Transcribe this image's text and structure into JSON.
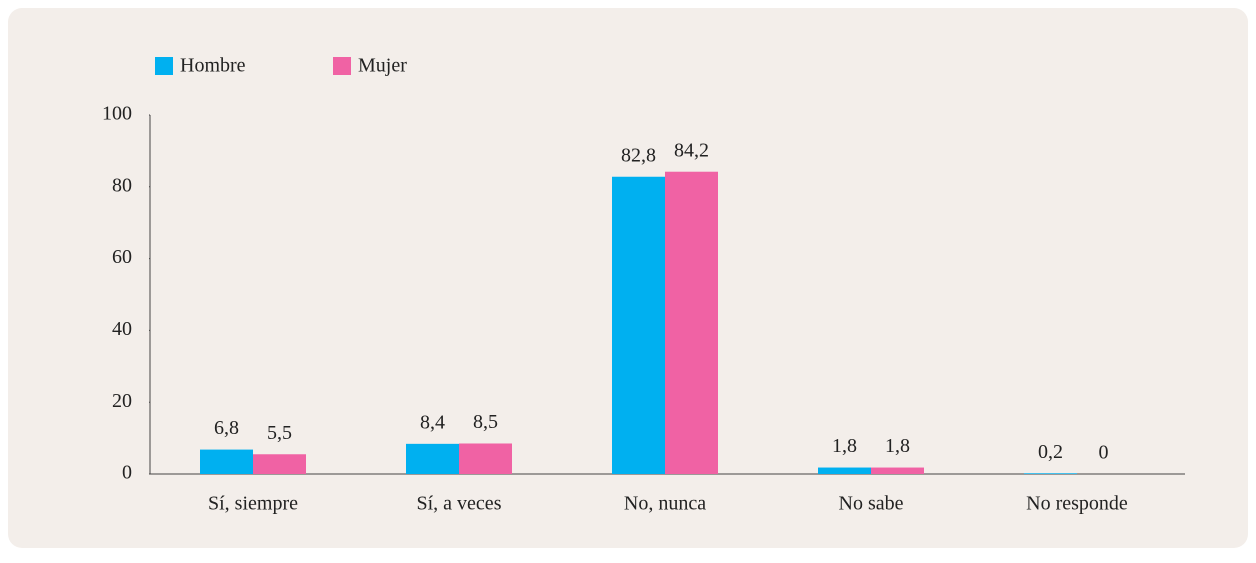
{
  "chart_data": {
    "type": "bar",
    "categories": [
      "Sí, siempre",
      "Sí, a veces",
      "No, nunca",
      "No sabe",
      "No responde"
    ],
    "series": [
      {
        "name": "Hombre",
        "color": "#00b0f0",
        "values": [
          6.8,
          8.4,
          82.8,
          1.8,
          0.2
        ],
        "value_labels": [
          "6,8",
          "8,4",
          "82,8",
          "1,8",
          "0,2"
        ]
      },
      {
        "name": "Mujer",
        "color": "#f062a4",
        "values": [
          5.5,
          8.5,
          84.2,
          1.8,
          0
        ],
        "value_labels": [
          "5,5",
          "8,5",
          "84,2",
          "1,8",
          "0"
        ]
      }
    ],
    "ylim": [
      0,
      100
    ],
    "yticks": [
      0,
      20,
      40,
      60,
      80,
      100
    ],
    "legend": "top-left"
  }
}
